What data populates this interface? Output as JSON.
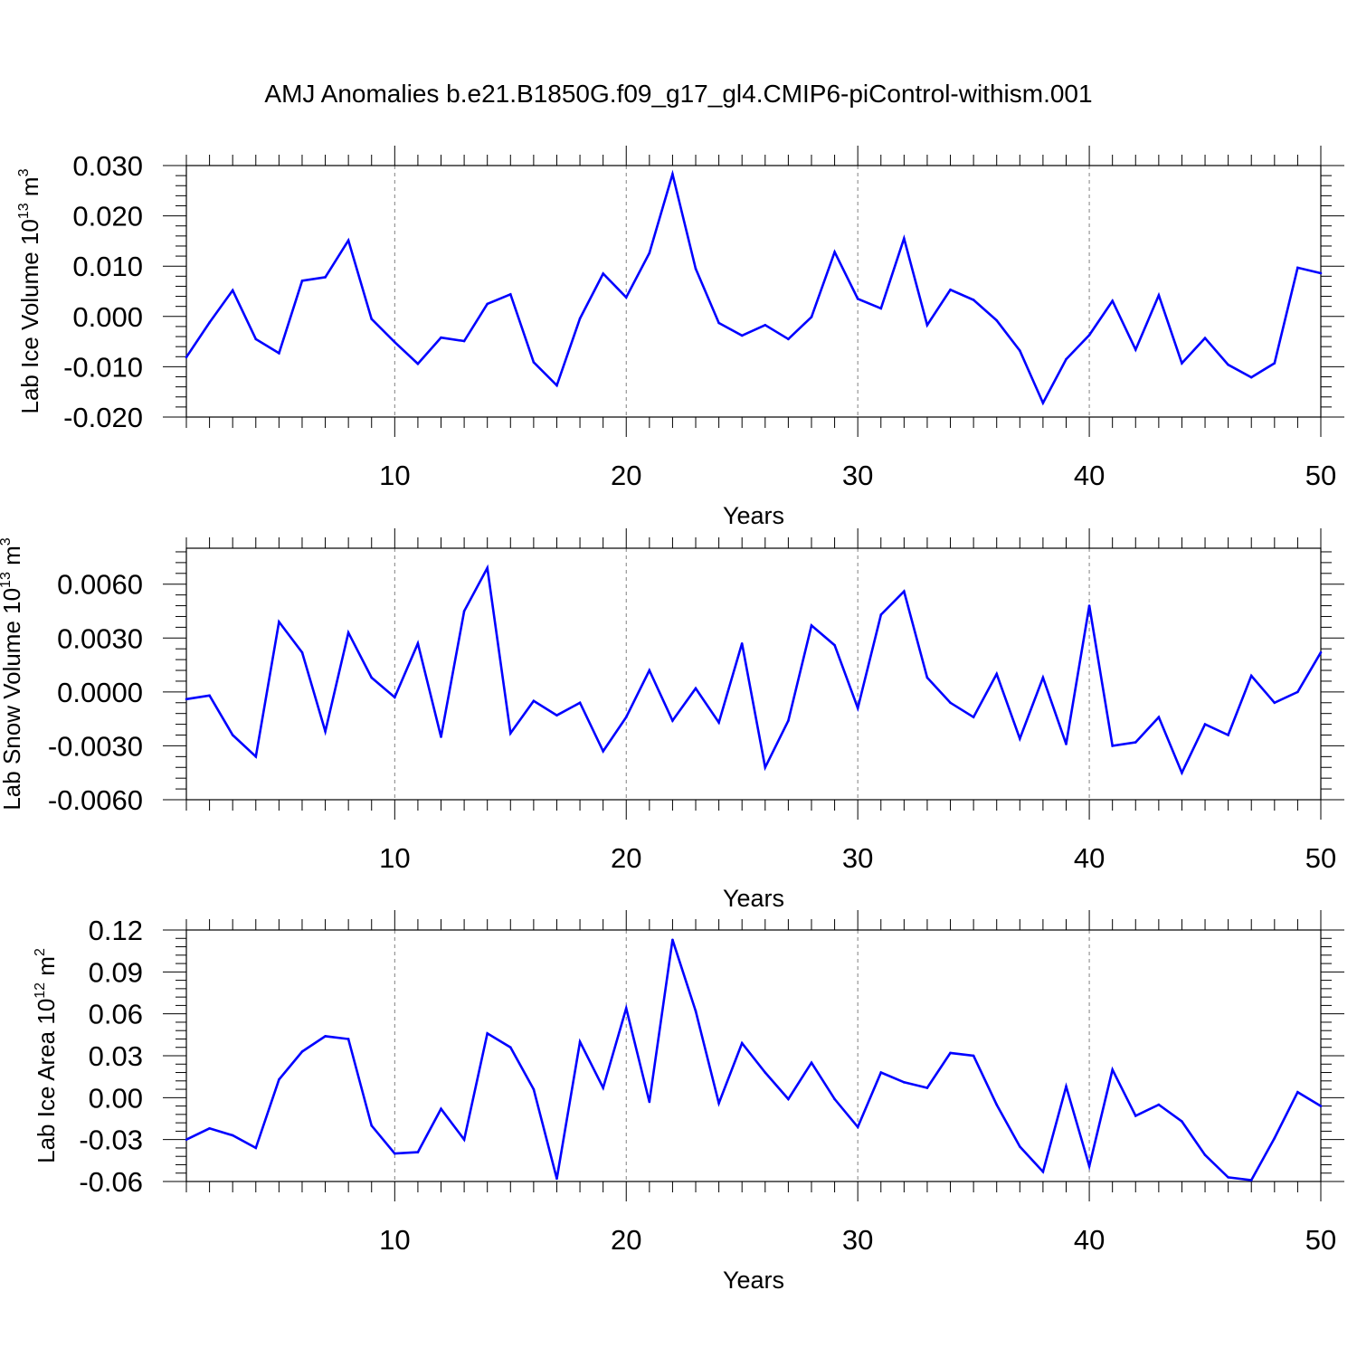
{
  "title": "AMJ Anomalies b.e21.B1850G.f09_g17_gl4.CMIP6-piControl-withism.001",
  "colors": {
    "series": "#0000ff",
    "axis": "#000000",
    "grid": "#808080"
  },
  "chart_data": [
    {
      "type": "line",
      "ylabel_main": "Lab Ice Volume 10",
      "ylabel_sup": "13",
      "ylabel_unit": " m",
      "ylabel_unit_sup": "3",
      "xlabel": "Years",
      "xlim": [
        1,
        50
      ],
      "ylim": [
        -0.02,
        0.03
      ],
      "yticks": [
        -0.02,
        -0.01,
        0.0,
        0.01,
        0.02,
        0.03
      ],
      "yticklabels": [
        "-0.020",
        "-0.010",
        "0.000",
        "0.010",
        "0.020",
        "0.030"
      ],
      "xticks": [
        10,
        20,
        30,
        40,
        50
      ],
      "xticklabels": [
        "10",
        "20",
        "30",
        "40",
        "50"
      ],
      "grid_x": [
        10,
        20,
        30,
        40
      ],
      "x": [
        1,
        2,
        3,
        4,
        5,
        6,
        7,
        8,
        9,
        10,
        11,
        12,
        13,
        14,
        15,
        16,
        17,
        18,
        19,
        20,
        21,
        22,
        23,
        24,
        25,
        26,
        27,
        28,
        29,
        30,
        31,
        32,
        33,
        34,
        35,
        36,
        37,
        38,
        39,
        40,
        41,
        42,
        43,
        44,
        45,
        46,
        47,
        48,
        49,
        50
      ],
      "values": [
        -0.0081,
        -0.0012,
        0.0052,
        -0.0045,
        -0.0073,
        0.0071,
        0.0078,
        0.0151,
        -0.0005,
        -0.0051,
        -0.0094,
        -0.0042,
        -0.0049,
        0.0025,
        0.0044,
        -0.0091,
        -0.0137,
        -0.0004,
        0.0085,
        0.0038,
        0.0126,
        0.0283,
        0.0095,
        -0.0013,
        -0.0038,
        -0.0017,
        -0.0045,
        -0.0001,
        0.0128,
        0.0035,
        0.0016,
        0.0155,
        -0.0017,
        0.0053,
        0.0033,
        -0.0008,
        -0.0068,
        -0.0172,
        -0.0085,
        -0.0037,
        0.0031,
        -0.0066,
        0.0042,
        -0.0093,
        -0.0043,
        -0.0096,
        -0.0121,
        -0.0093,
        0.0097,
        0.0086
      ]
    },
    {
      "type": "line",
      "ylabel_main": "Lab Snow Volume 10",
      "ylabel_sup": "13",
      "ylabel_unit": " m",
      "ylabel_unit_sup": "3",
      "xlabel": "Years",
      "xlim": [
        1,
        50
      ],
      "ylim": [
        -0.006,
        0.008
      ],
      "yticks": [
        -0.006,
        -0.003,
        0.0,
        0.003,
        0.006
      ],
      "yticklabels": [
        "-0.0060",
        "-0.0030",
        "0.0000",
        "0.0030",
        "0.0060"
      ],
      "xticks": [
        10,
        20,
        30,
        40,
        50
      ],
      "xticklabels": [
        "10",
        "20",
        "30",
        "40",
        "50"
      ],
      "grid_x": [
        10,
        20,
        30,
        40
      ],
      "x": [
        1,
        2,
        3,
        4,
        5,
        6,
        7,
        8,
        9,
        10,
        11,
        12,
        13,
        14,
        15,
        16,
        17,
        18,
        19,
        20,
        21,
        22,
        23,
        24,
        25,
        26,
        27,
        28,
        29,
        30,
        31,
        32,
        33,
        34,
        35,
        36,
        37,
        38,
        39,
        40,
        41,
        42,
        43,
        44,
        45,
        46,
        47,
        48,
        49,
        50
      ],
      "values": [
        -0.0004,
        -0.0002,
        -0.0024,
        -0.0036,
        0.0039,
        0.0022,
        -0.0022,
        0.0033,
        0.0008,
        -0.0003,
        0.0027,
        -0.0025,
        0.0045,
        0.0069,
        -0.0023,
        -0.0005,
        -0.0013,
        -0.0006,
        -0.0033,
        -0.0014,
        0.0012,
        -0.0016,
        0.0002,
        -0.0017,
        0.0027,
        -0.0042,
        -0.0016,
        0.0037,
        0.0026,
        -0.0009,
        0.0043,
        0.0056,
        0.0008,
        -0.0006,
        -0.0014,
        0.001,
        -0.0026,
        0.0008,
        -0.0029,
        0.0048,
        -0.003,
        -0.0028,
        -0.0014,
        -0.0045,
        -0.0018,
        -0.0024,
        0.0009,
        -0.0006,
        0.0,
        0.0022
      ]
    },
    {
      "type": "line",
      "ylabel_main": "Lab Ice Area 10",
      "ylabel_sup": "12",
      "ylabel_unit": " m",
      "ylabel_unit_sup": "2",
      "xlabel": "Years",
      "xlim": [
        1,
        50
      ],
      "ylim": [
        -0.06,
        0.12
      ],
      "yticks": [
        -0.06,
        -0.03,
        0.0,
        0.03,
        0.06,
        0.09,
        0.12
      ],
      "yticklabels": [
        "-0.06",
        "-0.03",
        "0.00",
        "0.03",
        "0.06",
        "0.09",
        "0.12"
      ],
      "xticks": [
        10,
        20,
        30,
        40,
        50
      ],
      "xticklabels": [
        "10",
        "20",
        "30",
        "40",
        "50"
      ],
      "grid_x": [
        10,
        20,
        30,
        40
      ],
      "x": [
        1,
        2,
        3,
        4,
        5,
        6,
        7,
        8,
        9,
        10,
        11,
        12,
        13,
        14,
        15,
        16,
        17,
        18,
        19,
        20,
        21,
        22,
        23,
        24,
        25,
        26,
        27,
        28,
        29,
        30,
        31,
        32,
        33,
        34,
        35,
        36,
        37,
        38,
        39,
        40,
        41,
        42,
        43,
        44,
        45,
        46,
        47,
        48,
        49,
        50
      ],
      "values": [
        -0.03,
        -0.022,
        -0.027,
        -0.036,
        0.013,
        0.033,
        0.044,
        0.042,
        -0.02,
        -0.04,
        -0.039,
        -0.008,
        -0.03,
        0.046,
        0.036,
        0.006,
        -0.058,
        0.04,
        0.007,
        0.064,
        -0.003,
        0.113,
        0.062,
        -0.004,
        0.039,
        0.018,
        -0.001,
        0.025,
        -0.001,
        -0.021,
        0.018,
        0.011,
        0.007,
        0.032,
        0.03,
        -0.005,
        -0.035,
        -0.053,
        0.008,
        -0.049,
        0.02,
        -0.013,
        -0.005,
        -0.017,
        -0.041,
        -0.057,
        -0.059,
        -0.029,
        0.004,
        -0.006
      ]
    }
  ]
}
